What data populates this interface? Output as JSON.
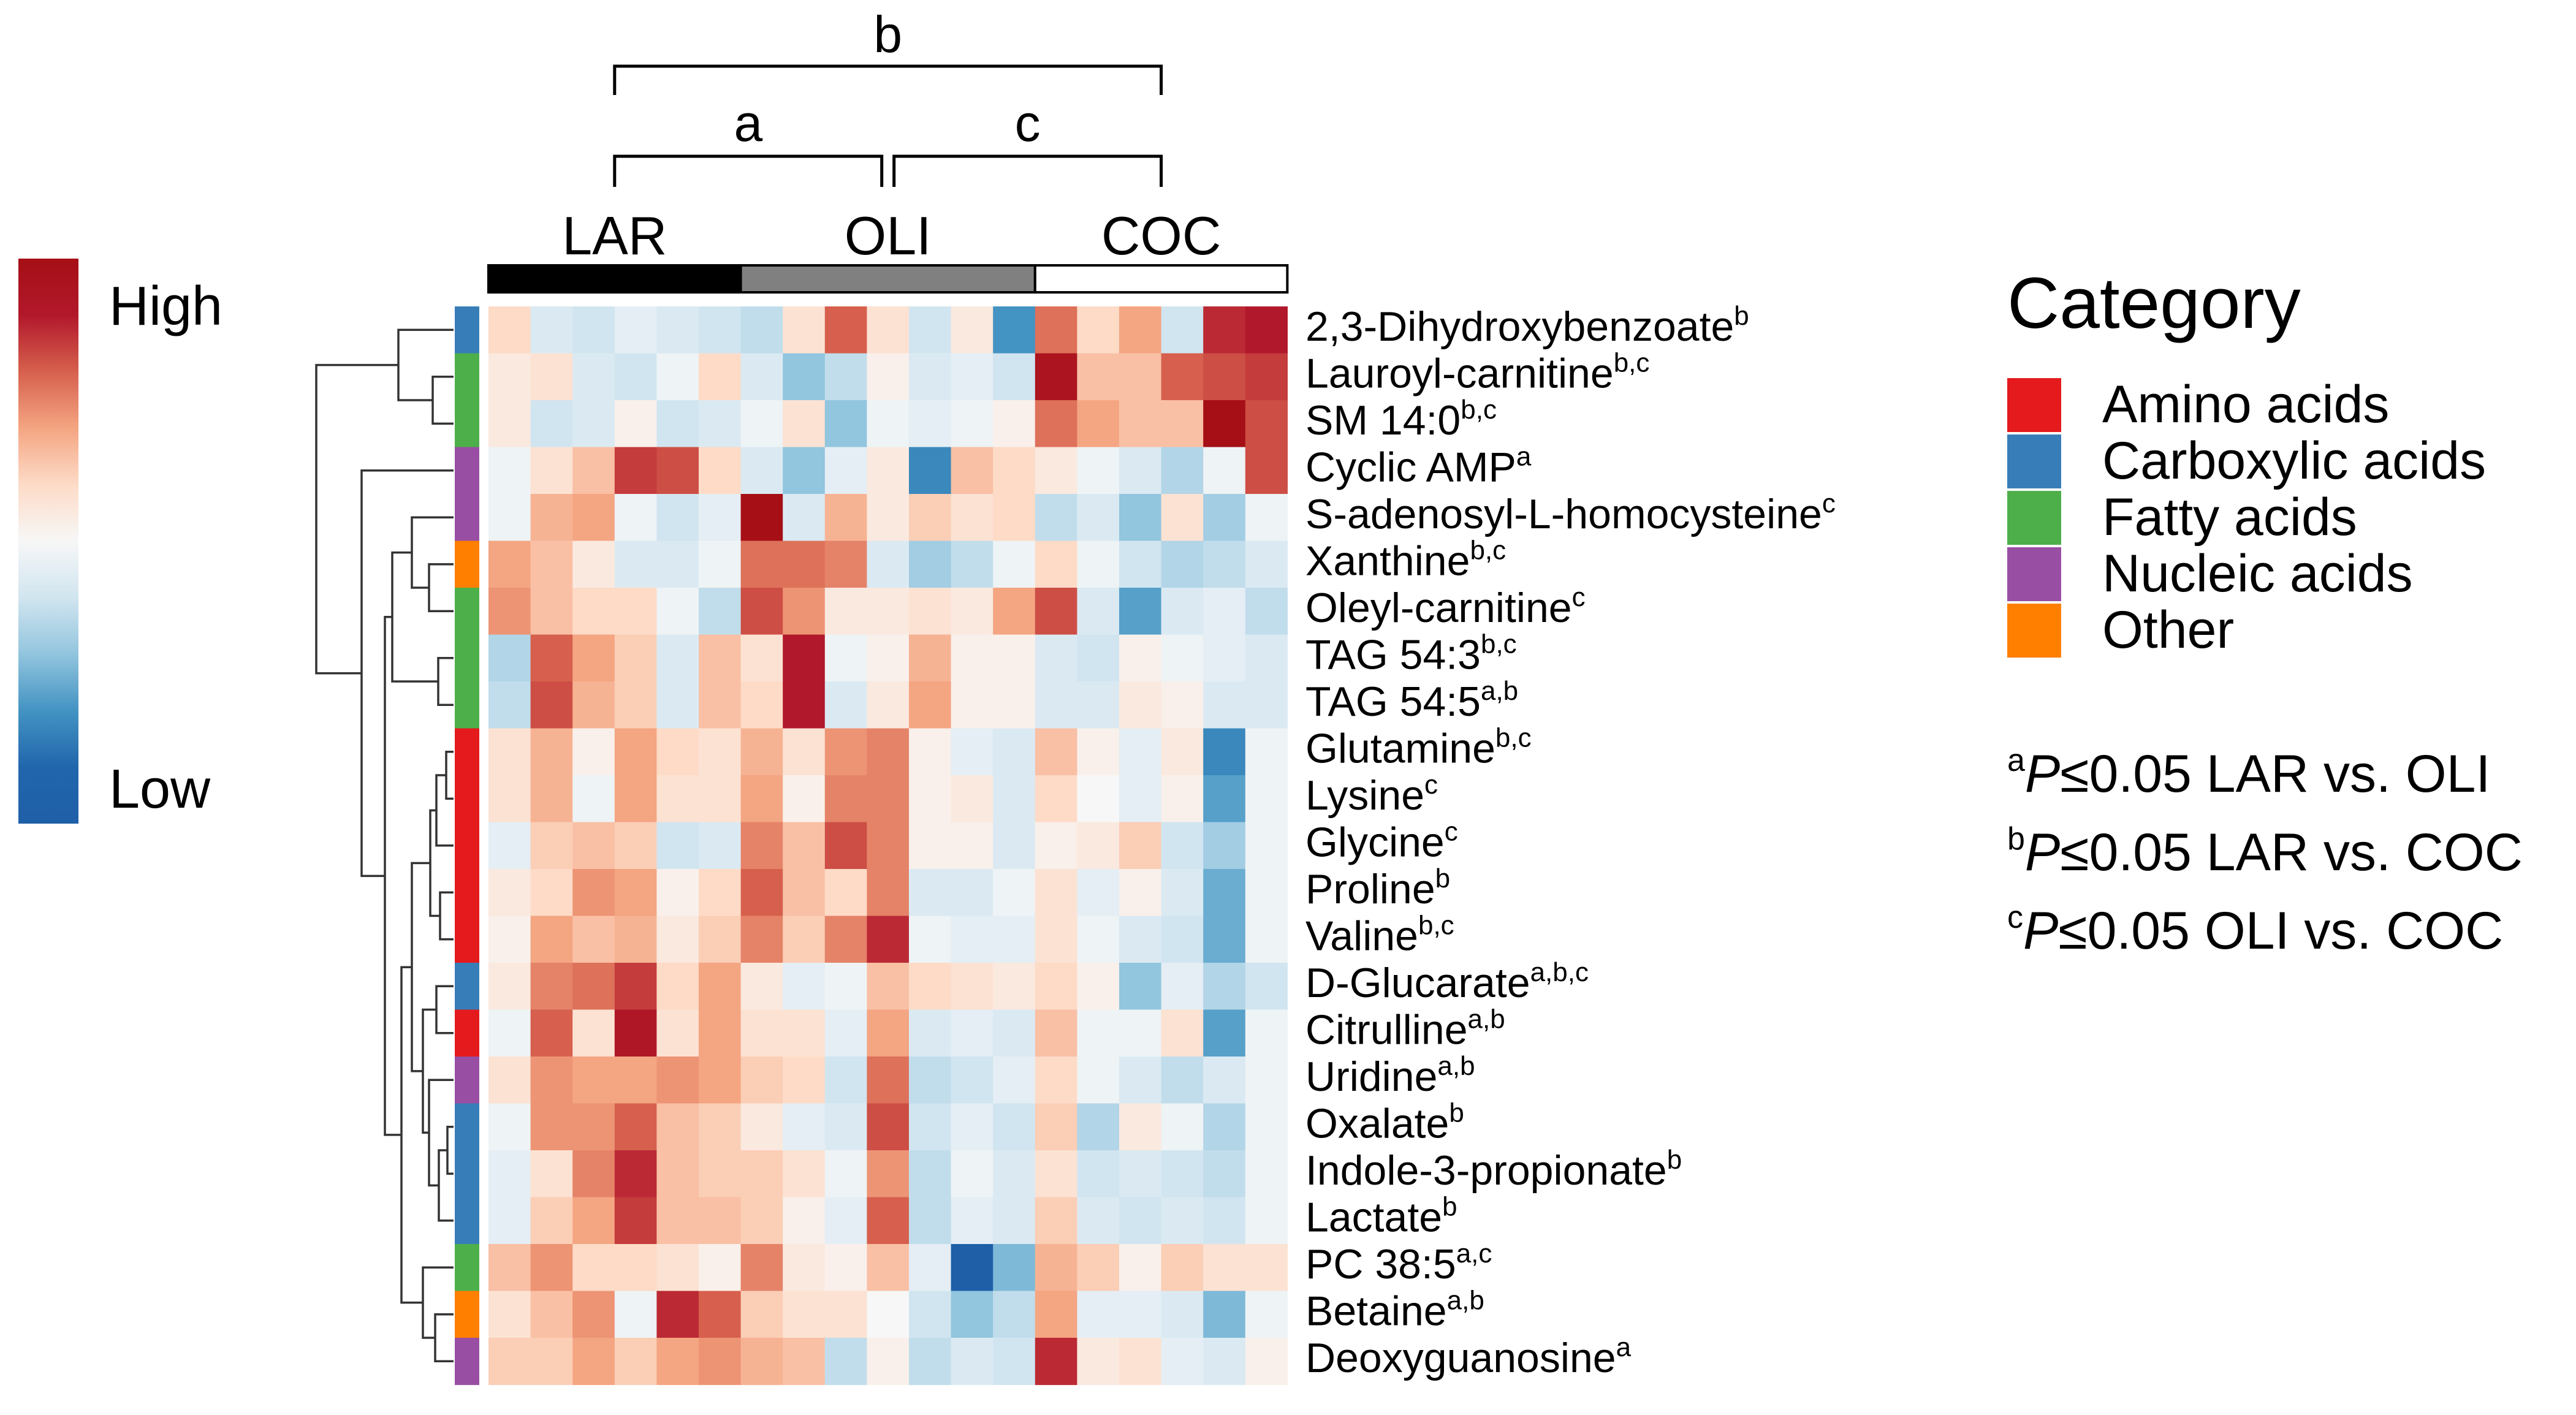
{
  "chart_data": {
    "type": "heatmap",
    "title": "",
    "color_scale": {
      "high_label": "High",
      "low_label": "Low",
      "range": [
        -2,
        2
      ],
      "colors": [
        "#1f5fa8",
        "#2166ac",
        "#4393c3",
        "#92c5de",
        "#d1e5f0",
        "#f7f7f7",
        "#fddbc7",
        "#f4a582",
        "#d6604d",
        "#b2182b",
        "#a50f15"
      ]
    },
    "groups": [
      {
        "name": "LAR",
        "color": "#000000",
        "n": 6
      },
      {
        "name": "OLI",
        "color": "#808080",
        "n": 7
      },
      {
        "name": "COC",
        "color": "#ffffff",
        "n": 6
      }
    ],
    "comparison_brackets": [
      {
        "label": "b",
        "from": "LAR",
        "to": "COC"
      },
      {
        "label": "a",
        "from": "LAR",
        "to": "OLI"
      },
      {
        "label": "c",
        "from": "OLI",
        "to": "COC"
      }
    ],
    "category_legend": {
      "title": "Category",
      "items": [
        {
          "name": "Amino acids",
          "color": "#e41a1c"
        },
        {
          "name": "Carboxylic acids",
          "color": "#377eb8"
        },
        {
          "name": "Fatty acids",
          "color": "#4daf4a"
        },
        {
          "name": "Nucleic acids",
          "color": "#984ea3"
        },
        {
          "name": "Other",
          "color": "#ff7f00"
        }
      ]
    },
    "significance_notes": [
      {
        "sup": "a",
        "p": "P",
        "text": "≤0.05 LAR vs. OLI"
      },
      {
        "sup": "b",
        "p": "P",
        "text": "≤0.05 LAR vs. COC"
      },
      {
        "sup": "c",
        "p": "P",
        "text": "≤0.05 OLI vs. COC"
      }
    ],
    "rows": [
      {
        "name": "2,3-Dihydroxybenzoate",
        "sup": "b",
        "category": "Carboxylic acids",
        "values": [
          0.4,
          -0.3,
          -0.4,
          -0.2,
          -0.3,
          -0.4,
          -0.5,
          0.3,
          1.2,
          0.3,
          -0.4,
          0.2,
          -1.2,
          1.1,
          0.4,
          0.8,
          -0.4,
          1.5,
          1.6
        ]
      },
      {
        "name": "Lauroyl-carnitine",
        "sup": "b,c",
        "category": "Fatty acids",
        "values": [
          0.2,
          0.3,
          -0.3,
          -0.4,
          -0.1,
          0.4,
          -0.3,
          -0.8,
          -0.5,
          0.1,
          -0.3,
          -0.2,
          -0.4,
          1.8,
          0.6,
          0.6,
          1.2,
          1.3,
          1.4
        ]
      },
      {
        "name": "SM 14:0",
        "sup": "b,c",
        "category": "Fatty acids",
        "values": [
          0.2,
          -0.4,
          -0.3,
          0.1,
          -0.4,
          -0.3,
          -0.1,
          0.3,
          -0.8,
          -0.1,
          -0.2,
          -0.1,
          0.1,
          1.1,
          0.8,
          0.6,
          0.6,
          2.2,
          1.3
        ]
      },
      {
        "name": "Cyclic AMP",
        "sup": "a",
        "category": "Nucleic acids",
        "values": [
          -0.1,
          0.3,
          0.6,
          1.4,
          1.3,
          0.4,
          -0.3,
          -0.8,
          -0.2,
          0.2,
          -1.3,
          0.6,
          0.4,
          0.2,
          -0.1,
          -0.3,
          -0.6,
          -0.1,
          1.3
        ]
      },
      {
        "name": "S-adenosyl-L-homocysteine",
        "sup": "c",
        "category": "Nucleic acids",
        "values": [
          -0.1,
          0.7,
          0.8,
          -0.1,
          -0.4,
          -0.2,
          2.2,
          -0.3,
          0.7,
          0.2,
          0.5,
          0.3,
          0.4,
          -0.5,
          -0.3,
          -0.8,
          0.3,
          -0.7,
          -0.1
        ]
      },
      {
        "name": "Xanthine",
        "sup": "b,c",
        "category": "Other",
        "values": [
          0.8,
          0.6,
          0.2,
          -0.3,
          -0.3,
          -0.1,
          1.1,
          1.1,
          1.0,
          -0.3,
          -0.7,
          -0.5,
          -0.1,
          0.4,
          -0.1,
          -0.4,
          -0.6,
          -0.5,
          -0.3
        ]
      },
      {
        "name": "Oleyl-carnitine",
        "sup": "c",
        "category": "Fatty acids",
        "values": [
          0.9,
          0.6,
          0.4,
          0.4,
          -0.1,
          -0.5,
          1.3,
          0.9,
          0.2,
          0.2,
          0.3,
          0.2,
          0.8,
          1.3,
          -0.3,
          -1.1,
          -0.3,
          -0.2,
          -0.5
        ]
      },
      {
        "name": "TAG 54:3",
        "sup": "b,c",
        "category": "Fatty acids",
        "values": [
          -0.6,
          1.2,
          0.8,
          0.5,
          -0.3,
          0.6,
          0.3,
          1.6,
          -0.1,
          0.1,
          0.7,
          0.1,
          0.1,
          -0.3,
          -0.4,
          0.1,
          -0.1,
          -0.2,
          -0.3
        ]
      },
      {
        "name": "TAG 54:5",
        "sup": "a,b",
        "category": "Fatty acids",
        "values": [
          -0.5,
          1.3,
          0.7,
          0.5,
          -0.3,
          0.6,
          0.4,
          1.6,
          -0.3,
          0.2,
          0.8,
          0.1,
          0.1,
          -0.3,
          -0.3,
          0.2,
          0.1,
          -0.3,
          -0.3
        ]
      },
      {
        "name": "Glutamine",
        "sup": "b,c",
        "category": "Amino acids",
        "values": [
          0.3,
          0.7,
          0.1,
          0.8,
          0.4,
          0.3,
          0.7,
          0.3,
          0.9,
          1.0,
          0.1,
          -0.2,
          -0.3,
          0.6,
          0.1,
          -0.2,
          0.2,
          -1.3,
          -0.1
        ]
      },
      {
        "name": "Lysine",
        "sup": "c",
        "category": "Amino acids",
        "values": [
          0.3,
          0.7,
          -0.1,
          0.8,
          0.3,
          0.3,
          0.8,
          0.1,
          1.0,
          1.0,
          0.1,
          0.2,
          -0.3,
          0.4,
          0.0,
          -0.2,
          0.1,
          -1.1,
          -0.1
        ]
      },
      {
        "name": "Glycine",
        "sup": "c",
        "category": "Amino acids",
        "values": [
          -0.2,
          0.5,
          0.6,
          0.5,
          -0.4,
          -0.3,
          1.0,
          0.6,
          1.3,
          1.0,
          0.1,
          0.1,
          -0.3,
          0.1,
          0.2,
          0.5,
          -0.4,
          -0.7,
          -0.1
        ]
      },
      {
        "name": "Proline",
        "sup": "b",
        "category": "Amino acids",
        "values": [
          0.2,
          0.4,
          0.9,
          0.8,
          0.1,
          0.4,
          1.2,
          0.6,
          0.4,
          1.0,
          -0.3,
          -0.3,
          -0.1,
          0.3,
          -0.2,
          0.1,
          -0.3,
          -1.0,
          -0.1
        ]
      },
      {
        "name": "Valine",
        "sup": "b,c",
        "category": "Amino acids",
        "values": [
          0.1,
          0.8,
          0.6,
          0.7,
          0.2,
          0.5,
          1.0,
          0.5,
          1.0,
          1.5,
          -0.1,
          -0.2,
          -0.2,
          0.3,
          -0.1,
          -0.3,
          -0.4,
          -1.0,
          -0.1
        ]
      },
      {
        "name": "D-Glucarate",
        "sup": "a,b,c",
        "category": "Carboxylic acids",
        "values": [
          0.2,
          1.0,
          1.1,
          1.4,
          0.4,
          0.8,
          0.2,
          -0.2,
          -0.1,
          0.6,
          0.4,
          0.3,
          0.2,
          0.4,
          0.1,
          -0.8,
          -0.2,
          -0.6,
          -0.4
        ]
      },
      {
        "name": "Citrulline",
        "sup": "a,b",
        "category": "Amino acids",
        "values": [
          -0.1,
          1.2,
          0.3,
          1.7,
          0.3,
          0.8,
          0.3,
          0.3,
          -0.2,
          0.8,
          -0.3,
          -0.2,
          -0.3,
          0.6,
          -0.1,
          -0.1,
          0.3,
          -1.1,
          -0.1
        ]
      },
      {
        "name": "Uridine",
        "sup": "a,b",
        "category": "Nucleic acids",
        "values": [
          0.3,
          0.9,
          0.8,
          0.8,
          0.9,
          0.8,
          0.5,
          0.4,
          -0.4,
          1.1,
          -0.5,
          -0.4,
          -0.2,
          0.4,
          -0.1,
          -0.3,
          -0.5,
          -0.3,
          -0.1
        ]
      },
      {
        "name": "Oxalate",
        "sup": "b",
        "category": "Carboxylic acids",
        "values": [
          -0.1,
          0.9,
          0.9,
          1.2,
          0.6,
          0.5,
          0.2,
          -0.2,
          -0.3,
          1.3,
          -0.4,
          -0.2,
          -0.4,
          0.5,
          -0.6,
          0.2,
          -0.1,
          -0.6,
          -0.1
        ]
      },
      {
        "name": "Indole-3-propionate",
        "sup": "b",
        "category": "Carboxylic acids",
        "values": [
          -0.2,
          0.3,
          1.0,
          1.5,
          0.6,
          0.5,
          0.5,
          0.3,
          -0.1,
          0.9,
          -0.5,
          -0.1,
          -0.3,
          0.3,
          -0.4,
          -0.3,
          -0.4,
          -0.5,
          -0.1
        ]
      },
      {
        "name": "Lactate",
        "sup": "b",
        "category": "Carboxylic acids",
        "values": [
          -0.2,
          0.5,
          0.8,
          1.4,
          0.6,
          0.6,
          0.5,
          0.1,
          -0.2,
          1.2,
          -0.5,
          -0.2,
          -0.3,
          0.5,
          -0.3,
          -0.4,
          -0.3,
          -0.4,
          -0.1
        ]
      },
      {
        "name": "PC 38:5",
        "sup": "a,c",
        "category": "Fatty acids",
        "values": [
          0.6,
          0.9,
          0.4,
          0.4,
          0.3,
          0.1,
          1.0,
          0.2,
          0.1,
          0.6,
          -0.2,
          -2.0,
          -0.9,
          0.7,
          0.5,
          0.1,
          0.5,
          0.3,
          0.3
        ]
      },
      {
        "name": "Betaine",
        "sup": "a,b",
        "category": "Other",
        "values": [
          0.3,
          0.6,
          0.9,
          -0.1,
          1.5,
          1.2,
          0.5,
          0.3,
          0.3,
          0.0,
          -0.4,
          -0.8,
          -0.5,
          0.8,
          -0.2,
          -0.2,
          -0.3,
          -0.9,
          -0.1
        ]
      },
      {
        "name": "Deoxyguanosine",
        "sup": "a",
        "category": "Nucleic acids",
        "values": [
          0.5,
          0.5,
          0.8,
          0.5,
          0.8,
          0.9,
          0.7,
          0.6,
          -0.5,
          0.1,
          -0.5,
          -0.3,
          -0.4,
          1.5,
          0.2,
          0.3,
          -0.2,
          -0.3,
          0.1
        ]
      }
    ]
  }
}
